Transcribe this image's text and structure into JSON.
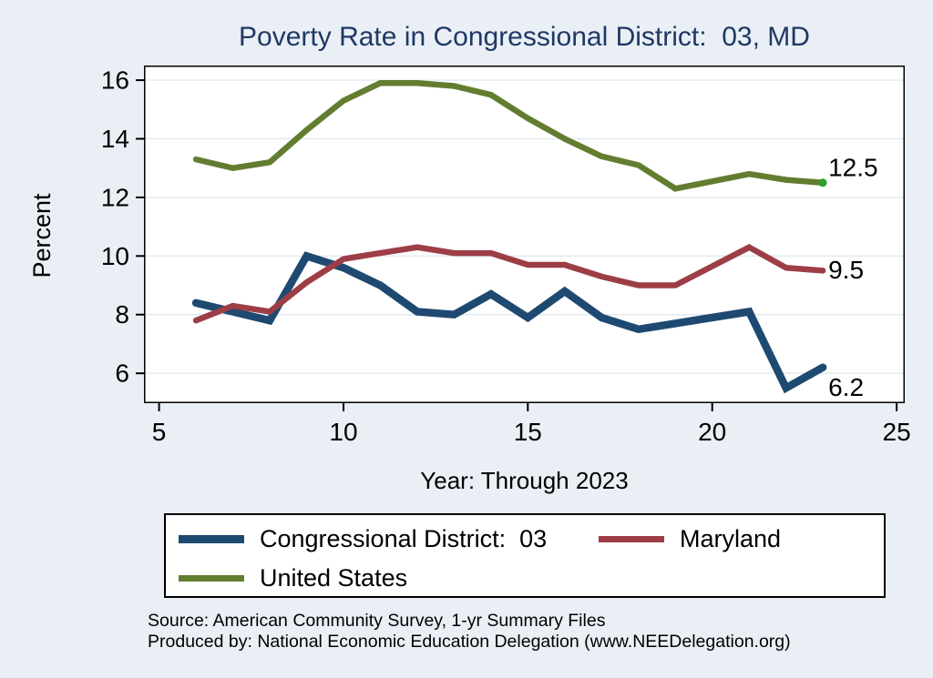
{
  "title": "Poverty Rate in Congressional District:  03, MD",
  "colors": {
    "background": "#e9eff5",
    "plot_background": "#ffffff",
    "grid": "#dde9f2",
    "axis": "#000000",
    "title_text": "#203864",
    "district_line": "#1e4a71",
    "maryland_line": "#9d3e46",
    "us_line": "#637d30",
    "us_end_dot": "#2ba12b"
  },
  "chart_data": {
    "type": "line",
    "x": [
      6,
      7,
      8,
      9,
      10,
      11,
      12,
      13,
      14,
      15,
      16,
      17,
      18,
      19,
      21,
      22,
      23
    ],
    "series": [
      {
        "name": "Congressional District:  03",
        "color": "#1e4a71",
        "line_width": 8.5,
        "values": [
          8.4,
          8.1,
          7.8,
          10.0,
          9.6,
          9.0,
          8.1,
          8.0,
          8.7,
          7.9,
          8.8,
          7.9,
          7.5,
          7.7,
          8.1,
          5.5,
          6.2
        ]
      },
      {
        "name": "Maryland",
        "color": "#9d3e46",
        "line_width": 6.5,
        "values": [
          7.8,
          8.3,
          8.1,
          9.1,
          9.9,
          10.1,
          10.3,
          10.1,
          10.1,
          9.7,
          9.7,
          9.3,
          9.0,
          9.0,
          10.3,
          9.6,
          9.5
        ]
      },
      {
        "name": "United States",
        "color": "#637d30",
        "line_width": 6.5,
        "end_dot": true,
        "dot_color": "#2ba12b",
        "values": [
          13.3,
          13.0,
          13.2,
          14.3,
          15.3,
          15.9,
          15.9,
          15.8,
          15.5,
          14.7,
          14.0,
          13.4,
          13.1,
          12.3,
          12.8,
          12.6,
          12.5
        ]
      }
    ],
    "xlabel": "Year: Through 2023",
    "ylabel": "Percent",
    "x_ticks": [
      5,
      10,
      15,
      20,
      25
    ],
    "y_ticks": [
      6,
      8,
      10,
      12,
      14,
      16
    ],
    "xlim": [
      4.59,
      25.22
    ],
    "ylim": [
      4.98,
      16.5
    ],
    "grid": "horizontal",
    "legend_position": "bottom",
    "end_labels": [
      {
        "text": "12.5",
        "value": 12.5
      },
      {
        "text": "9.5",
        "value": 9.5
      },
      {
        "text": "6.2",
        "value": 6.2
      }
    ]
  },
  "footer": {
    "source": "Source: American Community Survey, 1-yr Summary Files",
    "produced_by": "Produced by: National Economic Education Delegation (www.NEEDelegation.org)"
  }
}
